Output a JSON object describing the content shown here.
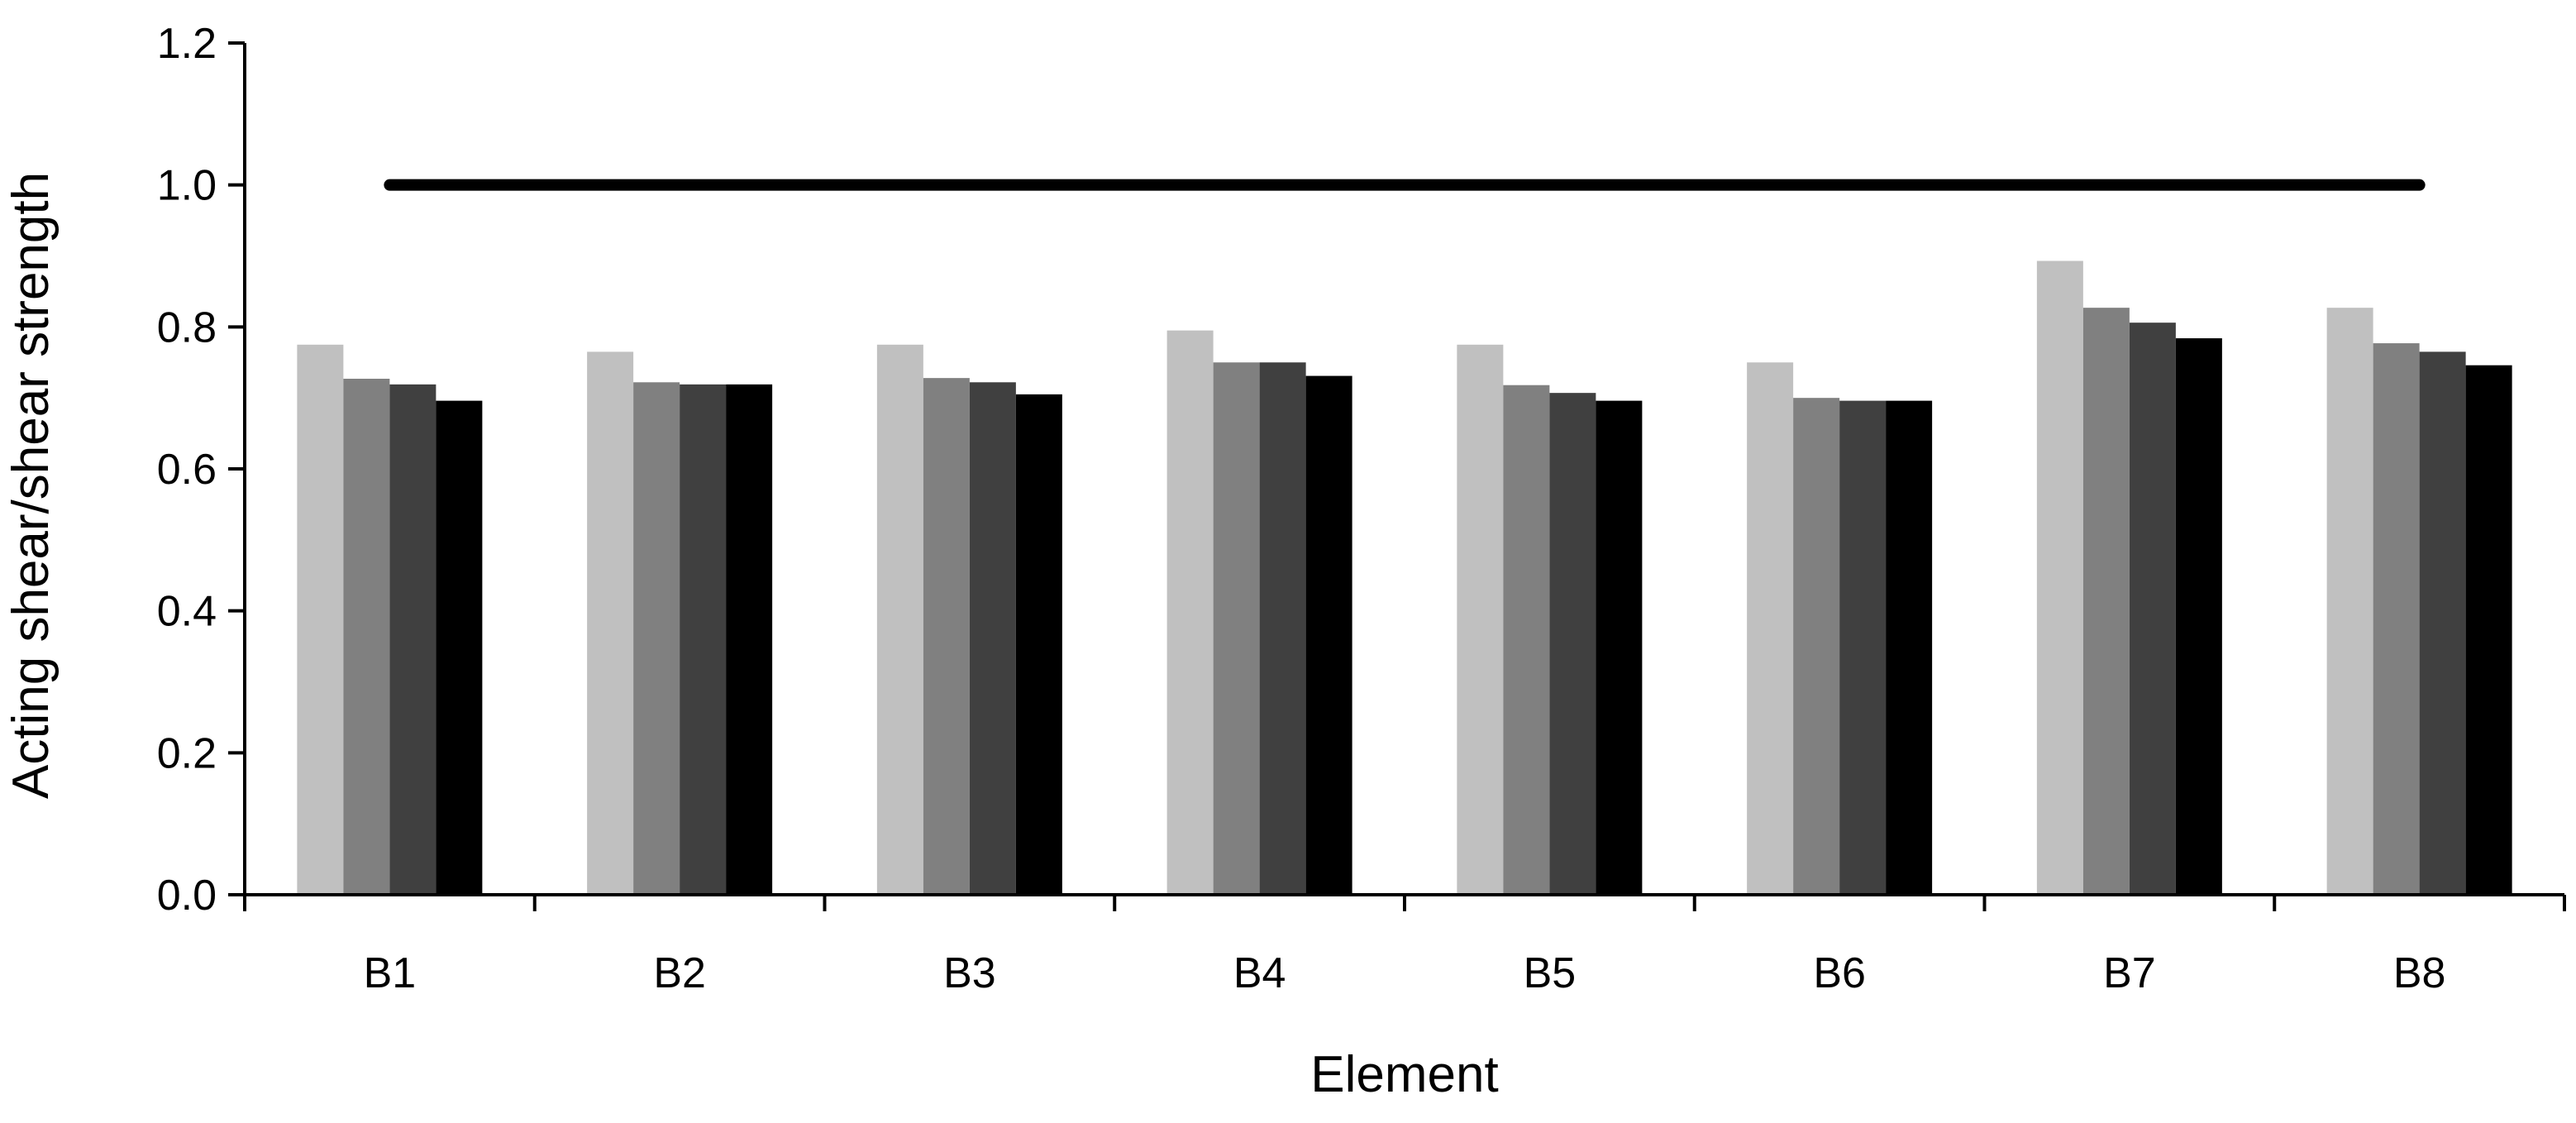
{
  "chart_data": {
    "type": "bar",
    "xlabel": "Element",
    "ylabel": "Acting shear/shear strength",
    "categories": [
      "B1",
      "B2",
      "B3",
      "B4",
      "B5",
      "B6",
      "B7",
      "B8"
    ],
    "ylim": [
      0,
      1.2
    ],
    "yticks": [
      "0.0",
      "0.2",
      "0.4",
      "0.6",
      "0.8",
      "1.0",
      "1.2"
    ],
    "grid": false,
    "legend": "none",
    "series": [
      {
        "color": "#c0c0c0",
        "values": [
          0.775,
          0.765,
          0.775,
          0.795,
          0.775,
          0.75,
          0.893,
          0.827
        ]
      },
      {
        "color": "#808080",
        "values": [
          0.727,
          0.722,
          0.728,
          0.75,
          0.718,
          0.7,
          0.827,
          0.777
        ]
      },
      {
        "color": "#404040",
        "values": [
          0.719,
          0.719,
          0.722,
          0.75,
          0.707,
          0.696,
          0.806,
          0.765
        ]
      },
      {
        "color": "#000000",
        "values": [
          0.696,
          0.719,
          0.705,
          0.731,
          0.696,
          0.696,
          0.784,
          0.746
        ]
      }
    ],
    "reference_line": {
      "y": 1.0,
      "color": "#000000",
      "from_category": "B1",
      "to_category": "B8"
    }
  }
}
